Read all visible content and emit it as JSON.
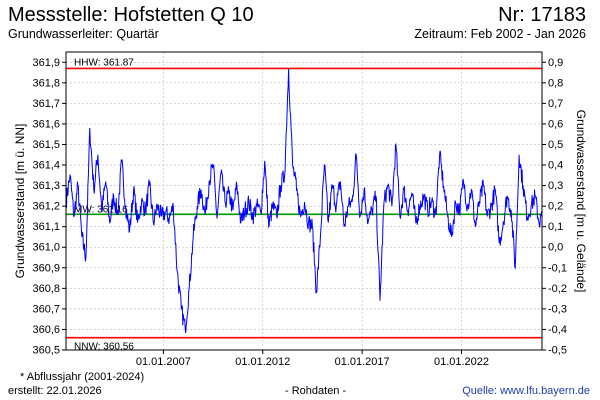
{
  "header": {
    "title": "Messstelle: Hofstetten Q 10",
    "station_number": "Nr: 17183",
    "aquifer": "Grundwasserleiter: Quartär",
    "period": "Zeitraum: Feb 2002 - Jan 2026"
  },
  "footer": {
    "note": "* Abflussjahr (2001-2024)",
    "created": "erstellt:  22.01.2026",
    "raw_data": "- Rohdaten -",
    "source": "Quelle: www.lfu.bayern.de"
  },
  "colors": {
    "series": "#0000ff",
    "reference_lines": "#ff0000",
    "mw_line": "#009900",
    "grid": "#bbbbbb",
    "source_link": "#1f3ea6"
  },
  "chart_data": {
    "type": "line",
    "ylabel": "Grundwasserstand [m ü. NN]",
    "y2label": "Grundwasserstand [m u. Gelände]",
    "ylim": [
      360.5,
      361.95
    ],
    "y_ticks": [
      "360,5",
      "360,6",
      "360,7",
      "360,8",
      "360,9",
      "361,0",
      "361,1",
      "361,2",
      "361,3",
      "361,4",
      "361,5",
      "361,6",
      "361,7",
      "361,8",
      "361,9"
    ],
    "y_tick_values": [
      360.5,
      360.6,
      360.7,
      360.8,
      360.9,
      361.0,
      361.1,
      361.2,
      361.3,
      361.4,
      361.5,
      361.6,
      361.7,
      361.8,
      361.9
    ],
    "y2_ticks": [
      "-0,5",
      "-0,4",
      "-0,3",
      "-0,2",
      "-0,1",
      "0,0",
      "0,1",
      "0,2",
      "0,3",
      "0,4",
      "0,5",
      "0,6",
      "0,7",
      "0,8",
      "0,9"
    ],
    "x_ticks": [
      "01.01.2007",
      "01.01.2012",
      "01.01.2017",
      "01.01.2022"
    ],
    "x_tick_years": [
      2007,
      2012,
      2017,
      2022
    ],
    "xlim": [
      2002.1,
      2026.05
    ],
    "grid": true,
    "reference_lines": [
      {
        "label": "HHW: 361.87",
        "value": 361.87,
        "kind": "max"
      },
      {
        "label": "MW: 361.16",
        "value": 361.16,
        "kind": "mean"
      },
      {
        "label": "NNW: 360.56",
        "value": 360.56,
        "kind": "min"
      }
    ],
    "series": [
      {
        "x": [
          2002.1,
          2002.3,
          2002.5,
          2002.7,
          2002.9,
          2003.1,
          2003.3,
          2003.5,
          2003.7,
          2003.9,
          2004.1,
          2004.3,
          2004.5,
          2004.7,
          2004.9,
          2005.1,
          2005.3,
          2005.5,
          2005.7,
          2005.9,
          2006.1,
          2006.3,
          2006.5,
          2006.7,
          2006.9,
          2007.1,
          2007.3,
          2007.5,
          2007.7,
          2007.9,
          2008.1,
          2008.3,
          2008.5,
          2008.7,
          2008.9,
          2009.1,
          2009.3,
          2009.5,
          2009.7,
          2009.9,
          2010.1,
          2010.3,
          2010.5,
          2010.7,
          2010.9,
          2011.1,
          2011.3,
          2011.5,
          2011.7,
          2011.9,
          2012.1,
          2012.3,
          2012.5,
          2012.7,
          2012.9,
          2013.1,
          2013.3,
          2013.5,
          2013.7,
          2013.9,
          2014.1,
          2014.3,
          2014.5,
          2014.7,
          2014.9,
          2015.1,
          2015.3,
          2015.5,
          2015.7,
          2015.9,
          2016.1,
          2016.3,
          2016.5,
          2016.7,
          2016.9,
          2017.1,
          2017.3,
          2017.5,
          2017.7,
          2017.9,
          2018.1,
          2018.3,
          2018.5,
          2018.7,
          2018.9,
          2019.1,
          2019.3,
          2019.5,
          2019.7,
          2019.9,
          2020.1,
          2020.3,
          2020.5,
          2020.7,
          2020.9,
          2021.1,
          2021.3,
          2021.5,
          2021.7,
          2021.9,
          2022.1,
          2022.3,
          2022.5,
          2022.7,
          2022.9,
          2023.1,
          2023.3,
          2023.5,
          2023.7,
          2023.9,
          2024.1,
          2024.3,
          2024.5,
          2024.7,
          2024.9,
          2025.1,
          2025.3,
          2025.5,
          2025.7,
          2025.9,
          2026.05
        ],
        "y": [
          361.22,
          361.35,
          361.15,
          361.3,
          361.05,
          360.95,
          361.58,
          361.28,
          361.45,
          361.18,
          361.32,
          361.12,
          361.25,
          361.16,
          361.42,
          361.2,
          361.08,
          361.28,
          361.12,
          361.22,
          361.18,
          361.3,
          361.12,
          361.2,
          361.15,
          361.17,
          361.14,
          361.2,
          360.88,
          360.7,
          360.6,
          360.8,
          361.05,
          361.2,
          361.28,
          361.16,
          361.32,
          361.4,
          361.14,
          361.36,
          361.22,
          361.26,
          361.18,
          361.3,
          361.12,
          361.18,
          361.22,
          361.15,
          361.2,
          361.17,
          361.42,
          361.1,
          361.2,
          361.15,
          361.3,
          361.35,
          361.87,
          361.4,
          361.28,
          361.15,
          361.22,
          361.12,
          361.1,
          360.78,
          361.05,
          361.4,
          361.12,
          361.3,
          361.2,
          361.32,
          361.1,
          361.2,
          361.22,
          361.45,
          361.15,
          361.28,
          361.12,
          361.18,
          361.25,
          360.74,
          361.22,
          361.3,
          361.2,
          361.5,
          361.15,
          361.28,
          361.18,
          361.26,
          361.12,
          361.2,
          361.25,
          361.18,
          361.22,
          361.16,
          361.45,
          361.3,
          361.15,
          361.05,
          361.22,
          361.18,
          361.32,
          361.2,
          361.28,
          361.1,
          361.22,
          361.3,
          361.15,
          361.2,
          361.28,
          361.02,
          361.12,
          361.25,
          361.18,
          360.9,
          361.45,
          361.3,
          361.15,
          361.2,
          361.25,
          361.12,
          361.15
        ]
      }
    ]
  }
}
